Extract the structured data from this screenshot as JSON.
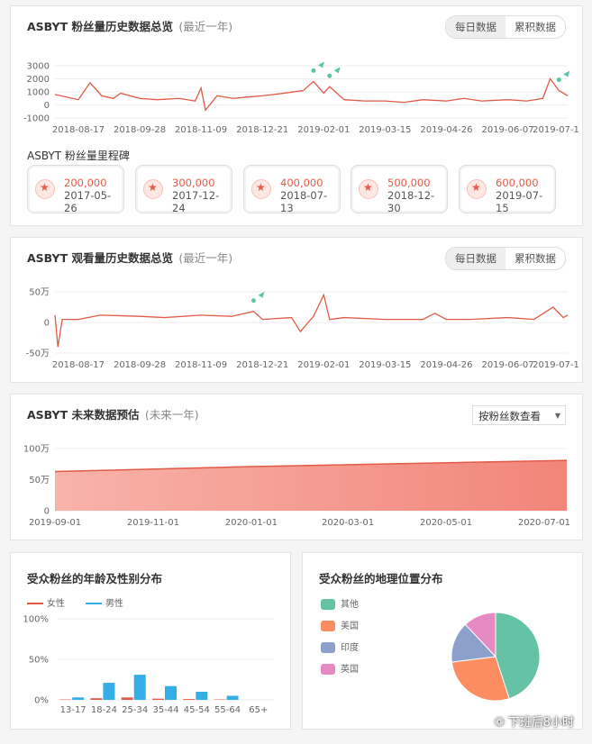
{
  "fans_card": {
    "title": "ASBYT 粉丝量历史数据总览",
    "subtitle": "(最近一年)",
    "toggle": [
      "每日数据",
      "累积数据"
    ],
    "milestone_title": "ASBYT 粉丝量里程碑",
    "milestones": [
      {
        "value": "200,000",
        "date": "2017-05-26"
      },
      {
        "value": "300,000",
        "date": "2017-12-24"
      },
      {
        "value": "400,000",
        "date": "2018-07-13"
      },
      {
        "value": "500,000",
        "date": "2018-12-30"
      },
      {
        "value": "600,000",
        "date": "2019-07-15"
      }
    ]
  },
  "views_card": {
    "title": "ASBYT 观看量历史数据总览",
    "subtitle": "(最近一年)",
    "toggle": [
      "每日数据",
      "累积数据"
    ]
  },
  "forecast_card": {
    "title": "ASBYT 未来数据预估",
    "subtitle": "(未来一年)",
    "dropdown": "按粉丝数查看"
  },
  "age_card": {
    "title": "受众粉丝的年龄及性别分布",
    "legend": [
      "女性",
      "男性"
    ]
  },
  "geo_card": {
    "title": "受众粉丝的地理位置分布",
    "legend": [
      "其他",
      "美国",
      "印度",
      "英国"
    ]
  },
  "watermark": "下班后8小时",
  "colors": {
    "line": "#e05a45",
    "male": "#34aee6",
    "female": "#e05a45",
    "other": "#66c2a5",
    "us": "#fc8d62",
    "india": "#8da0cb",
    "uk": "#e78ac3",
    "marker": "#5ec5a2"
  },
  "chart_data": [
    {
      "type": "line",
      "id": "fans",
      "ylim": [
        -1000,
        3000
      ],
      "yticks": [
        "3000",
        "2000",
        "1000",
        "0",
        "-1000"
      ],
      "xticks": [
        "2018-08-17",
        "2018-09-28",
        "2018-11-09",
        "2018-12-21",
        "2019-02-01",
        "2019-03-15",
        "2019-04-26",
        "2019-06-07",
        "2019-07-1"
      ],
      "x": [
        "2018-08-01",
        "2018-08-17",
        "2018-08-25",
        "2018-09-02",
        "2018-09-10",
        "2018-09-15",
        "2018-09-28",
        "2018-10-10",
        "2018-10-25",
        "2018-11-05",
        "2018-11-09",
        "2018-11-12",
        "2018-11-20",
        "2018-12-01",
        "2018-12-10",
        "2018-12-21",
        "2019-01-05",
        "2019-01-18",
        "2019-01-25",
        "2019-02-01",
        "2019-02-05",
        "2019-02-15",
        "2019-03-01",
        "2019-03-15",
        "2019-03-28",
        "2019-04-10",
        "2019-04-26",
        "2019-05-08",
        "2019-05-20",
        "2019-06-07",
        "2019-06-20",
        "2019-07-01",
        "2019-07-06",
        "2019-07-12",
        "2019-07-18"
      ],
      "y": [
        800,
        400,
        1700,
        700,
        500,
        900,
        500,
        400,
        500,
        300,
        1300,
        -400,
        700,
        500,
        600,
        700,
        900,
        1100,
        1800,
        900,
        1400,
        400,
        300,
        300,
        200,
        400,
        300,
        500,
        300,
        400,
        300,
        500,
        2000,
        1100,
        700
      ],
      "markers": [
        "2019-01-25",
        "2019-02-05",
        "2019-07-12"
      ]
    },
    {
      "type": "line",
      "id": "views",
      "ylim": [
        -50,
        50
      ],
      "yunit": "万",
      "yticks": [
        "50万",
        "0",
        "-50万"
      ],
      "xticks": [
        "2018-08-17",
        "2018-09-28",
        "2018-11-09",
        "2018-12-21",
        "2019-02-01",
        "2019-03-15",
        "2019-04-26",
        "2019-06-07",
        "2019-07-1"
      ],
      "x": [
        "2018-08-01",
        "2018-08-03",
        "2018-08-06",
        "2018-08-17",
        "2018-09-01",
        "2018-09-28",
        "2018-10-15",
        "2018-11-09",
        "2018-11-30",
        "2018-12-15",
        "2018-12-21",
        "2019-01-10",
        "2019-01-16",
        "2019-01-25",
        "2019-02-01",
        "2019-02-05",
        "2019-02-15",
        "2019-03-15",
        "2019-04-10",
        "2019-04-18",
        "2019-04-26",
        "2019-05-12",
        "2019-06-07",
        "2019-06-25",
        "2019-07-08",
        "2019-07-15",
        "2019-07-18"
      ],
      "y": [
        12,
        -40,
        5,
        5,
        12,
        10,
        8,
        12,
        10,
        18,
        5,
        8,
        -15,
        10,
        45,
        5,
        8,
        5,
        5,
        15,
        5,
        5,
        8,
        5,
        25,
        8,
        12
      ],
      "markers": [
        "2018-12-15"
      ]
    },
    {
      "type": "area",
      "id": "forecast",
      "ylim": [
        0,
        100
      ],
      "yunit": "万",
      "yticks": [
        "100万",
        "50万",
        "0"
      ],
      "xticks": [
        "2019-09-01",
        "2019-11-01",
        "2020-01-01",
        "2020-03-01",
        "2020-05-01",
        "2020-07-01"
      ],
      "x": [
        "2019-09-01",
        "2020-01-01",
        "2020-07-15"
      ],
      "y": [
        63,
        71,
        81
      ]
    },
    {
      "type": "bar",
      "id": "age_gender",
      "ylim": [
        0,
        100
      ],
      "yticks": [
        "100%",
        "50%",
        "0%"
      ],
      "categories": [
        "13-17",
        "18-24",
        "25-34",
        "35-44",
        "45-54",
        "55-64",
        "65+"
      ],
      "series": [
        {
          "name": "女性",
          "values": [
            0.5,
            2,
            3,
            1.5,
            1,
            0.5,
            0
          ]
        },
        {
          "name": "男性",
          "values": [
            3,
            21,
            31,
            17,
            10,
            5,
            0
          ]
        }
      ]
    },
    {
      "type": "pie",
      "id": "geo",
      "labels": [
        "其他",
        "美国",
        "印度",
        "英国"
      ],
      "values": [
        45,
        28,
        15,
        12
      ]
    }
  ]
}
